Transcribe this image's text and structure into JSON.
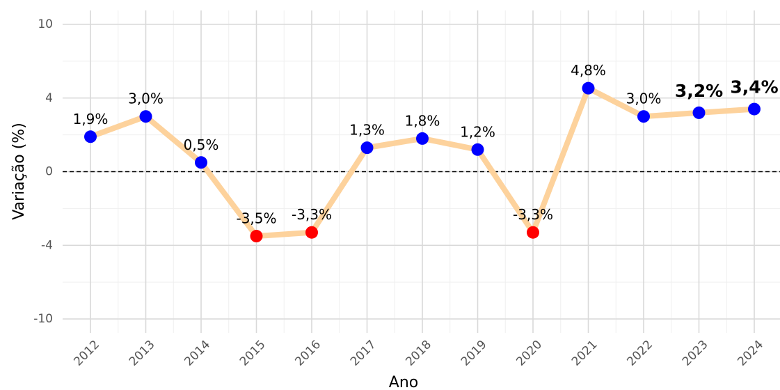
{
  "chart_data": {
    "type": "line",
    "x_label": "Ano",
    "y_label": "Variação (%)",
    "categories": [
      "2012",
      "2013",
      "2014",
      "2015",
      "2016",
      "2017",
      "2018",
      "2019",
      "2020",
      "2021",
      "2022",
      "2023",
      "2024"
    ],
    "series": [
      {
        "color": "#fdd29c",
        "values": [
          1.9,
          3.0,
          0.5,
          -3.5,
          -3.3,
          1.3,
          1.8,
          1.2,
          -3.3,
          4.8,
          3.0,
          3.2,
          3.4
        ],
        "value_labels": [
          "1,9%",
          "3,0%",
          "0,5%",
          "-3,5%",
          "-3,3%",
          "1,3%",
          "1,8%",
          "1,2%",
          "-3,3%",
          "4,8%",
          "3,0%",
          "3,2%",
          "3,4%"
        ],
        "point_colors": [
          "#0000ff",
          "#0000ff",
          "#0000ff",
          "#ff0000",
          "#ff0000",
          "#0000ff",
          "#0000ff",
          "#0000ff",
          "#ff0000",
          "#0000ff",
          "#0000ff",
          "#0000ff",
          "#0000ff"
        ],
        "bold_labels": [
          false,
          false,
          false,
          false,
          false,
          false,
          false,
          false,
          false,
          false,
          false,
          true,
          true
        ]
      }
    ],
    "ylim": [
      -10,
      10
    ],
    "yticks": [
      10,
      4,
      0,
      -4,
      -10
    ],
    "hline": 0,
    "grid": true
  }
}
